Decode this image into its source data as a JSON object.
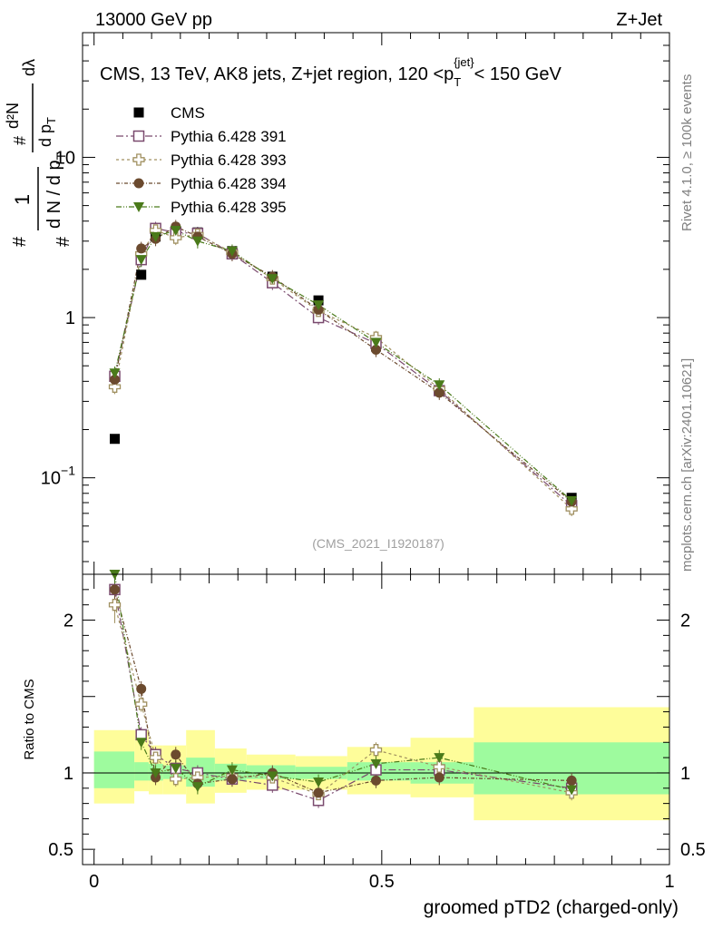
{
  "header": {
    "left_label": "13000 GeV pp",
    "right_label": "Z+Jet"
  },
  "side_labels": {
    "rivet": "Rivet 4.1.0, ≥ 100k events",
    "mcplots": "mcplots.cern.ch [arXiv:2401.10621]"
  },
  "chart_data": [
    {
      "panel": "main",
      "type": "scatter",
      "title": "CMS, 13 TeV, AK8 jets, Z+jet region, 120 <p_T^{jet}< 150 GeV",
      "title_parts": {
        "pre": "CMS, 13 TeV, AK8 jets, Z+jet region, 120 <p",
        "sub": "T",
        "sup": "{jet}",
        "post": "< 150 GeV"
      },
      "analysis_id": "(CMS_2021_I1920187)",
      "ylabel": "1/dN d²N/dp_T dλ",
      "ylabel_parts": {
        "num1": "1",
        "den1": "d N / d p",
        "sub1": "T",
        "num2": "d²N",
        "den2": "d p",
        "sub2": "T",
        "tail": "dλ",
        "hashes": [
          "#",
          "#",
          "#"
        ]
      },
      "yscale": "log",
      "ylim": [
        0.025,
        60
      ],
      "xlim": [
        -0.02,
        1.0
      ],
      "yticks": [
        {
          "v": 0.1,
          "base": "10",
          "exp": "−1"
        },
        {
          "v": 1,
          "label": "1"
        },
        {
          "v": 10,
          "label": "10"
        }
      ],
      "legend_position": "top-left",
      "x": [
        0.036,
        0.082,
        0.107,
        0.142,
        0.18,
        0.24,
        0.31,
        0.39,
        0.49,
        0.6,
        0.83
      ],
      "series": [
        {
          "name": "CMS",
          "marker": "square-filled",
          "color": "#000000",
          "values": [
            0.175,
            1.85,
            3.2,
            3.3,
            3.4,
            2.6,
            1.8,
            1.28,
            0.66,
            0.35,
            0.075
          ]
        },
        {
          "name": "Pythia 6.428 391",
          "marker": "square-open",
          "color": "#7a4a6e",
          "dash": "8,3,2,3",
          "values": [
            0.43,
            2.3,
            3.6,
            3.4,
            3.35,
            2.5,
            1.65,
            1.0,
            0.69,
            0.35,
            0.067
          ]
        },
        {
          "name": "Pythia 6.428 393",
          "marker": "cross-open",
          "color": "#a09060",
          "dash": "3,3",
          "values": [
            0.37,
            2.5,
            3.5,
            3.15,
            3.3,
            2.55,
            1.75,
            1.1,
            0.75,
            0.36,
            0.064
          ]
        },
        {
          "name": "Pythia 6.428 394",
          "marker": "circle-filled",
          "color": "#6b4a2e",
          "dash": "4,2,1,2",
          "values": [
            0.41,
            2.7,
            3.1,
            3.7,
            3.2,
            2.5,
            1.8,
            1.12,
            0.63,
            0.34,
            0.071
          ]
        },
        {
          "name": "Pythia 6.428 395",
          "marker": "triangle-down-filled",
          "color": "#4a7a1a",
          "dash": "6,2,1,2,1,2",
          "values": [
            0.45,
            2.3,
            3.2,
            3.5,
            3.0,
            2.6,
            1.75,
            1.2,
            0.7,
            0.38,
            0.072
          ]
        }
      ]
    },
    {
      "panel": "ratio",
      "type": "scatter",
      "ylabel": "Ratio to CMS",
      "xlabel": "groomed pTD2 (charged-only)",
      "ylim": [
        0.4,
        2.3
      ],
      "xlim": [
        -0.02,
        1.0
      ],
      "yticks": [
        0.5,
        1,
        2
      ],
      "xticks": [
        0,
        0.5,
        1
      ],
      "reference_line": 1,
      "bands": [
        {
          "x0": 0.0,
          "x1": 0.07,
          "inner": [
            0.9,
            1.14
          ],
          "outer": [
            0.8,
            1.28
          ]
        },
        {
          "x0": 0.07,
          "x1": 0.095,
          "inner": [
            0.95,
            1.07
          ],
          "outer": [
            0.88,
            1.28
          ]
        },
        {
          "x0": 0.095,
          "x1": 0.12,
          "inner": [
            0.95,
            1.06
          ],
          "outer": [
            0.86,
            1.18
          ]
        },
        {
          "x0": 0.12,
          "x1": 0.16,
          "inner": [
            0.96,
            1.05
          ],
          "outer": [
            0.86,
            1.18
          ]
        },
        {
          "x0": 0.16,
          "x1": 0.21,
          "inner": [
            0.91,
            1.1
          ],
          "outer": [
            0.8,
            1.28
          ]
        },
        {
          "x0": 0.21,
          "x1": 0.265,
          "inner": [
            0.95,
            1.06
          ],
          "outer": [
            0.87,
            1.16
          ]
        },
        {
          "x0": 0.265,
          "x1": 0.35,
          "inner": [
            0.96,
            1.05
          ],
          "outer": [
            0.89,
            1.12
          ]
        },
        {
          "x0": 0.35,
          "x1": 0.44,
          "inner": [
            0.96,
            1.04
          ],
          "outer": [
            0.89,
            1.11
          ]
        },
        {
          "x0": 0.44,
          "x1": 0.55,
          "inner": [
            0.95,
            1.07
          ],
          "outer": [
            0.86,
            1.17
          ]
        },
        {
          "x0": 0.55,
          "x1": 0.66,
          "inner": [
            0.93,
            1.07
          ],
          "outer": [
            0.84,
            1.23
          ]
        },
        {
          "x0": 0.66,
          "x1": 1.0,
          "inner": [
            0.86,
            1.2
          ],
          "outer": [
            0.69,
            1.43
          ]
        }
      ],
      "band_colors": {
        "inner": "#9efb9e",
        "outer": "#fefd9a"
      },
      "series": [
        {
          "name": "Pythia 6.428 391",
          "values": [
            2.2,
            1.25,
            1.12,
            1.03,
            1.0,
            0.96,
            0.92,
            0.82,
            1.02,
            1.02,
            0.9
          ]
        },
        {
          "name": "Pythia 6.428 393",
          "values": [
            2.1,
            1.45,
            1.1,
            0.96,
            0.97,
            0.98,
            0.97,
            0.86,
            1.15,
            1.04,
            0.87
          ]
        },
        {
          "name": "Pythia 6.428 394",
          "values": [
            2.2,
            1.55,
            0.97,
            1.12,
            0.93,
            0.96,
            1.0,
            0.87,
            0.95,
            0.97,
            0.95
          ]
        },
        {
          "name": "Pythia 6.428 395",
          "values": [
            2.35,
            1.2,
            1.0,
            1.03,
            0.91,
            1.02,
            0.98,
            0.94,
            1.06,
            1.1,
            0.89
          ]
        }
      ]
    }
  ]
}
